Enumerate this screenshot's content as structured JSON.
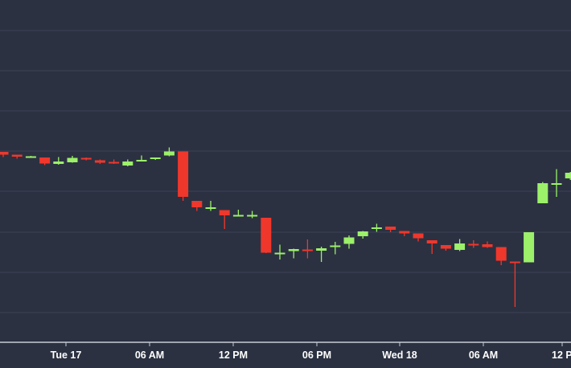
{
  "chart_data": {
    "type": "candlestick",
    "title": "",
    "xlabel": "",
    "ylabel": "",
    "x_ticks": [
      "Tue 17",
      "06 AM",
      "12 PM",
      "06 PM",
      "Wed 18",
      "06 AM",
      "12 P"
    ],
    "y_ticks_shown": false,
    "grid": "horizontal",
    "colors": {
      "background": "#2b3141",
      "grid": "#3d4456",
      "axis": "#c7ccd6",
      "up": "#9cf06a",
      "down": "#f0372c",
      "label": "#ffffff"
    },
    "candles": [
      {
        "o": 4.0,
        "h": 4.0,
        "l": 3.74,
        "c": 3.86
      },
      {
        "o": 3.86,
        "h": 3.86,
        "l": 3.66,
        "c": 3.76
      },
      {
        "o": 3.78,
        "h": 3.8,
        "l": 3.7,
        "c": 3.78
      },
      {
        "o": 3.72,
        "h": 3.72,
        "l": 3.34,
        "c": 3.42
      },
      {
        "o": 3.4,
        "h": 3.74,
        "l": 3.36,
        "c": 3.52
      },
      {
        "o": 3.48,
        "h": 3.8,
        "l": 3.46,
        "c": 3.7
      },
      {
        "o": 3.7,
        "h": 3.72,
        "l": 3.58,
        "c": 3.62
      },
      {
        "o": 3.58,
        "h": 3.62,
        "l": 3.4,
        "c": 3.46
      },
      {
        "o": 3.5,
        "h": 3.62,
        "l": 3.4,
        "c": 3.46
      },
      {
        "o": 3.32,
        "h": 3.62,
        "l": 3.28,
        "c": 3.52
      },
      {
        "o": 3.6,
        "h": 3.82,
        "l": 3.56,
        "c": 3.6
      },
      {
        "o": 3.66,
        "h": 3.72,
        "l": 3.6,
        "c": 3.72
      },
      {
        "o": 3.82,
        "h": 4.22,
        "l": 3.78,
        "c": 4.02
      },
      {
        "o": 4.02,
        "h": 4.02,
        "l": 1.56,
        "c": 1.76
      },
      {
        "o": 1.56,
        "h": 1.56,
        "l": 1.06,
        "c": 1.24
      },
      {
        "o": 1.24,
        "h": 1.56,
        "l": 1.06,
        "c": 1.24
      },
      {
        "o": 1.1,
        "h": 1.1,
        "l": 0.16,
        "c": 0.84
      },
      {
        "o": 0.84,
        "h": 1.12,
        "l": 0.8,
        "c": 0.86
      },
      {
        "o": 0.84,
        "h": 1.06,
        "l": 0.7,
        "c": 0.86
      },
      {
        "o": 0.72,
        "h": 0.72,
        "l": -1.04,
        "c": -1.02
      },
      {
        "o": -1.04,
        "h": -0.62,
        "l": -1.36,
        "c": -1.02
      },
      {
        "o": -0.94,
        "h": -0.82,
        "l": -1.3,
        "c": -0.84
      },
      {
        "o": -0.86,
        "h": -0.36,
        "l": -1.3,
        "c": -0.92
      },
      {
        "o": -0.92,
        "h": -0.72,
        "l": -1.48,
        "c": -0.8
      },
      {
        "o": -0.74,
        "h": -0.48,
        "l": -1.1,
        "c": -0.66
      },
      {
        "o": -0.58,
        "h": -0.16,
        "l": -0.82,
        "c": -0.26
      },
      {
        "o": -0.2,
        "h": 0.06,
        "l": -0.32,
        "c": 0.04
      },
      {
        "o": 0.2,
        "h": 0.42,
        "l": 0.02,
        "c": 0.24
      },
      {
        "o": 0.28,
        "h": 0.28,
        "l": 0.0,
        "c": 0.12
      },
      {
        "o": 0.06,
        "h": 0.06,
        "l": -0.2,
        "c": -0.06
      },
      {
        "o": -0.06,
        "h": -0.06,
        "l": -0.46,
        "c": -0.3
      },
      {
        "o": -0.4,
        "h": -0.4,
        "l": -1.08,
        "c": -0.56
      },
      {
        "o": -0.64,
        "h": -0.64,
        "l": -0.92,
        "c": -0.82
      },
      {
        "o": -0.88,
        "h": -0.34,
        "l": -0.94,
        "c": -0.56
      },
      {
        "o": -0.58,
        "h": -0.4,
        "l": -0.78,
        "c": -0.62
      },
      {
        "o": -0.6,
        "h": -0.46,
        "l": -0.78,
        "c": -0.74
      },
      {
        "o": -0.74,
        "h": -0.74,
        "l": -1.64,
        "c": -1.42
      },
      {
        "o": -1.46,
        "h": -1.46,
        "l": -3.72,
        "c": -1.5
      },
      {
        "o": -1.5,
        "h": 0.0,
        "l": -1.5,
        "c": 0.0
      },
      {
        "o": 1.44,
        "h": 2.5,
        "l": 1.44,
        "c": 2.44
      },
      {
        "o": 2.44,
        "h": 3.14,
        "l": 1.76,
        "c": 2.44
      },
      {
        "o": 2.68,
        "h": 3.0,
        "l": 2.6,
        "c": 2.96
      }
    ]
  }
}
